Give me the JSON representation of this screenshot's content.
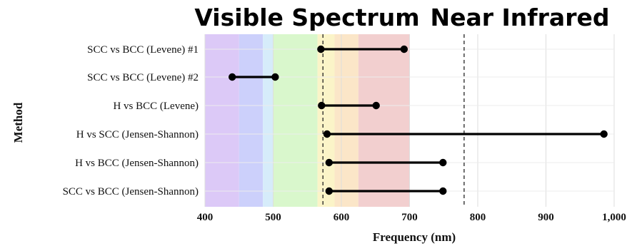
{
  "headings": {
    "visible": "Visible Spectrum",
    "infrared": "Near Infrared"
  },
  "chart_data": {
    "type": "dumbbell",
    "xlabel": "Frequency (nm)",
    "ylabel": "Method",
    "xlim": [
      400,
      1000
    ],
    "x_ticks": [
      400,
      500,
      600,
      700,
      800,
      900,
      1000
    ],
    "x_tick_labels": [
      "400",
      "500",
      "600",
      "700",
      "800",
      "900",
      "1,000"
    ],
    "grid": true,
    "categories": [
      "SCC vs BCC (Levene) #1",
      "SCC vs BCC (Levene) #2",
      "H vs BCC (Levene)",
      "H vs SCC (Jensen-Shannon)",
      "H vs BCC (Jensen-Shannon)",
      "SCC vs BCC (Jensen-Shannon)"
    ],
    "ranges": [
      {
        "start": 570,
        "end": 692
      },
      {
        "start": 440,
        "end": 503
      },
      {
        "start": 571,
        "end": 651
      },
      {
        "start": 579,
        "end": 985
      },
      {
        "start": 582,
        "end": 749
      },
      {
        "start": 582,
        "end": 749
      }
    ],
    "bands": [
      {
        "from": 400,
        "to": 450,
        "color": "#dcc9f7"
      },
      {
        "from": 450,
        "to": 485,
        "color": "#ccd0fb"
      },
      {
        "from": 485,
        "to": 500,
        "color": "#d6ecfa"
      },
      {
        "from": 500,
        "to": 565,
        "color": "#d9f7cc"
      },
      {
        "from": 565,
        "to": 590,
        "color": "#fbf4c8"
      },
      {
        "from": 590,
        "to": 625,
        "color": "#fbe6c8"
      },
      {
        "from": 625,
        "to": 700,
        "color": "#f2cfcf"
      }
    ],
    "reference_lines": [
      573,
      780
    ]
  }
}
